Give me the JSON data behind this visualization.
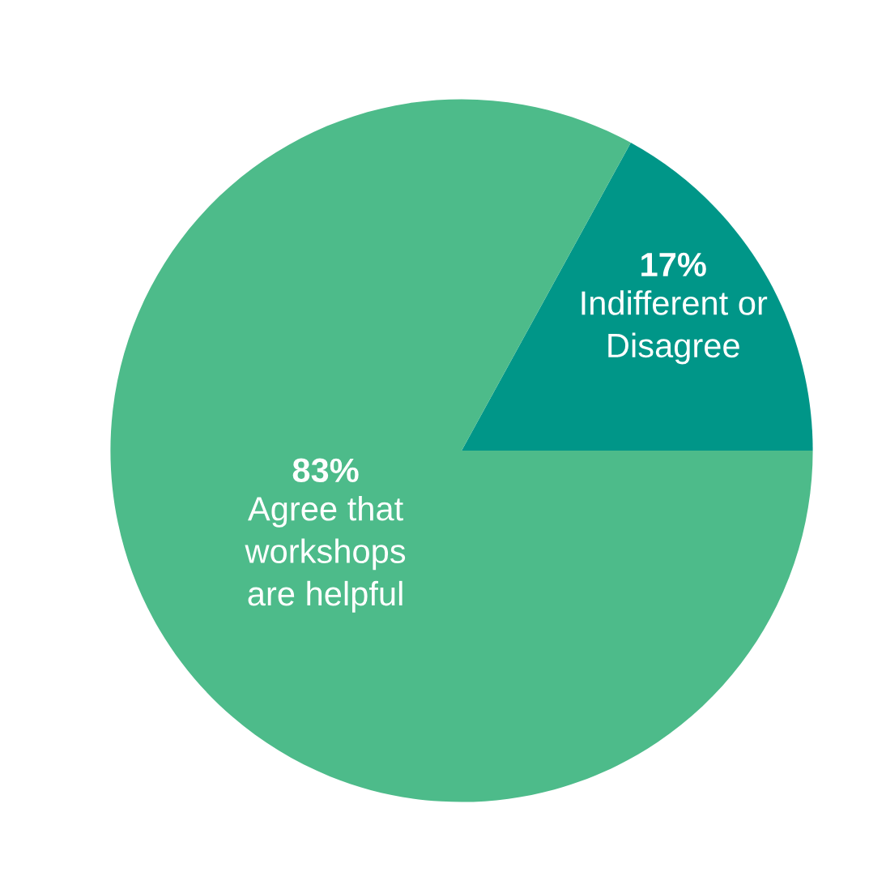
{
  "chart_data": {
    "type": "pie",
    "categories": [
      "Indifferent or\nDisagree",
      "Agree that\nworkshops\nare helpful"
    ],
    "values": [
      17,
      83
    ],
    "colors": [
      "#009688",
      "#4dbb8a"
    ],
    "value_labels": [
      "17%",
      "83%"
    ]
  }
}
